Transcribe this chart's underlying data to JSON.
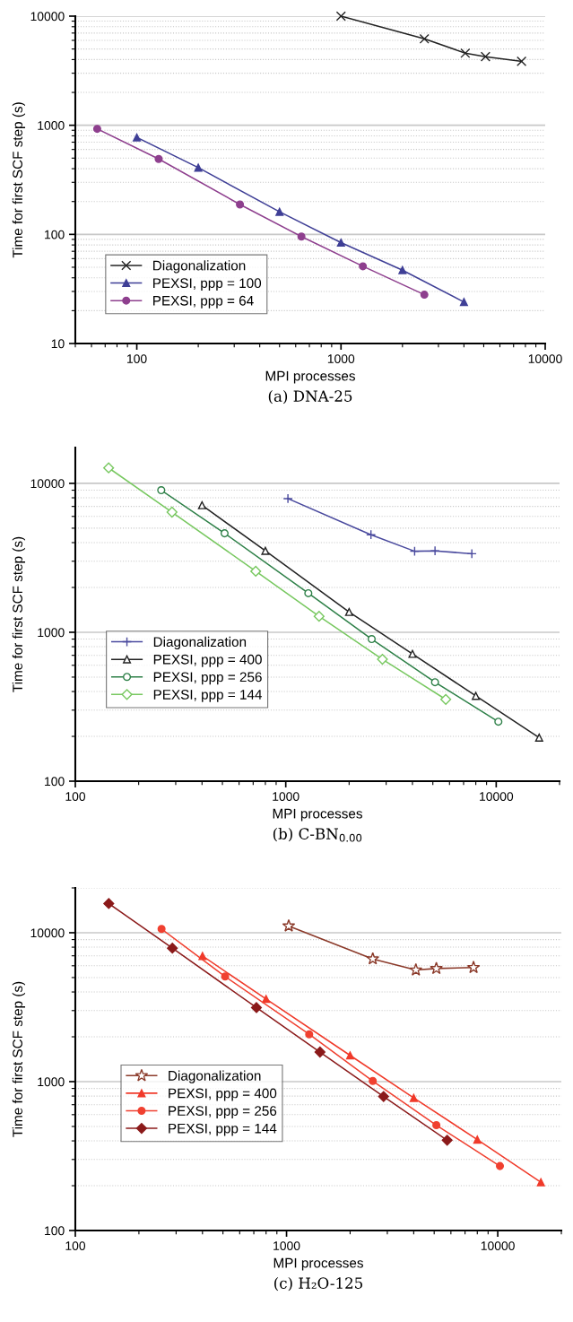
{
  "chart_data": [
    {
      "type": "line",
      "xlabel": "MPI processes",
      "ylabel": "Time for first SCF step (s)",
      "annotations": [
        "(a) DNA-25"
      ],
      "log": "xy",
      "grid": "y",
      "legend": "bottom left",
      "xlim": [
        50,
        10000
      ],
      "xticks": [
        100,
        1000,
        10000
      ],
      "ylim": [
        10,
        10000
      ],
      "yticks": [
        10,
        100,
        1000,
        10000
      ],
      "series": [
        {
          "name": "Diagonalization",
          "color": "#222222",
          "marker": "cross",
          "x": [
            1000,
            2560,
            4060,
            5100,
            7660
          ],
          "values": [
            10000,
            6200,
            4580,
            4250,
            3850
          ]
        },
        {
          "name": "PEXSI, ppp = 100",
          "color": "#3f3f96",
          "marker": "triangle",
          "x": [
            100,
            200,
            500,
            1000,
            2000,
            4000
          ],
          "values": [
            773,
            409,
            161,
            84,
            47,
            24
          ]
        },
        {
          "name": "PEXSI, ppp = 64",
          "color": "#8e3f8e",
          "marker": "circle",
          "x": [
            64,
            128,
            320,
            640,
            1280,
            2560
          ],
          "values": [
            927,
            491,
            188,
            95.5,
            51,
            28
          ]
        }
      ]
    },
    {
      "type": "line",
      "xlabel": "MPI processes",
      "ylabel": "Time for first SCF step (s)",
      "annotations": [
        "(b) C-BN$_{0.00}$"
      ],
      "log": "xy",
      "grid": "y",
      "legend": "bottom left",
      "xlim": [
        100,
        20000
      ],
      "xticks": [
        100,
        1000,
        10000
      ],
      "ylim": [
        100,
        17400
      ],
      "yticks": [
        100,
        1000,
        10000
      ],
      "series": [
        {
          "name": "Diagonalization",
          "color": "#4a4a9e",
          "marker": "plus",
          "x": [
            1024,
            2540,
            4096,
            5120,
            7660
          ],
          "values": [
            7900,
            4520,
            3500,
            3520,
            3370
          ]
        },
        {
          "name": "PEXSI, ppp = 400",
          "color": "#222222",
          "marker": "triangle",
          "x": [
            400,
            800,
            2000,
            4000,
            8000,
            16000
          ],
          "values": [
            7130,
            3520,
            1370,
            716,
            374,
            196
          ]
        },
        {
          "name": "PEXSI, ppp = 256",
          "color": "#2e8048",
          "marker": "circle",
          "x": [
            256,
            512,
            1280,
            2560,
            5120,
            10240
          ],
          "values": [
            9000,
            4620,
            1830,
            900,
            462,
            251
          ]
        },
        {
          "name": "PEXSI, ppp = 144",
          "color": "#78c860",
          "marker": "diamond",
          "x": [
            144,
            288,
            720,
            1440,
            2880,
            5760
          ],
          "values": [
            12700,
            6410,
            2570,
            1280,
            659,
            354
          ]
        }
      ]
    },
    {
      "type": "line",
      "xlabel": "MPI processes",
      "ylabel": "Time for first SCF step (s)",
      "annotations": [
        "(c) H₂O-125"
      ],
      "log": "xy",
      "grid": "y",
      "legend": "bottom left",
      "xlim": [
        100,
        20000
      ],
      "xticks": [
        100,
        1000,
        10000
      ],
      "ylim": [
        100,
        20000
      ],
      "yticks": [
        100,
        1000,
        10000
      ],
      "series": [
        {
          "name": "Diagonalization",
          "color": "#8b3a2a",
          "marker": "star",
          "x": [
            1024,
            2560,
            4096,
            5120,
            7680
          ],
          "values": [
            11100,
            6670,
            5620,
            5750,
            5840
          ]
        },
        {
          "name": "PEXSI, ppp = 400",
          "color": "#f03a2a",
          "marker": "triangle",
          "x": [
            400,
            800,
            2000,
            4000,
            8000,
            16000
          ],
          "values": [
            6980,
            3590,
            1500,
            777,
            408,
            211
          ]
        },
        {
          "name": "PEXSI, ppp = 256",
          "color": "#f04030",
          "marker": "circle",
          "x": [
            256,
            512,
            1280,
            2560,
            5120,
            10240
          ],
          "values": [
            10600,
            5080,
            2080,
            1010,
            510,
            271
          ]
        },
        {
          "name": "PEXSI, ppp = 144",
          "color": "#8b1a1a",
          "marker": "diamond",
          "x": [
            144,
            288,
            720,
            1440,
            2880,
            5760
          ],
          "values": [
            15700,
            7880,
            3140,
            1580,
            795,
            404
          ]
        }
      ]
    }
  ]
}
